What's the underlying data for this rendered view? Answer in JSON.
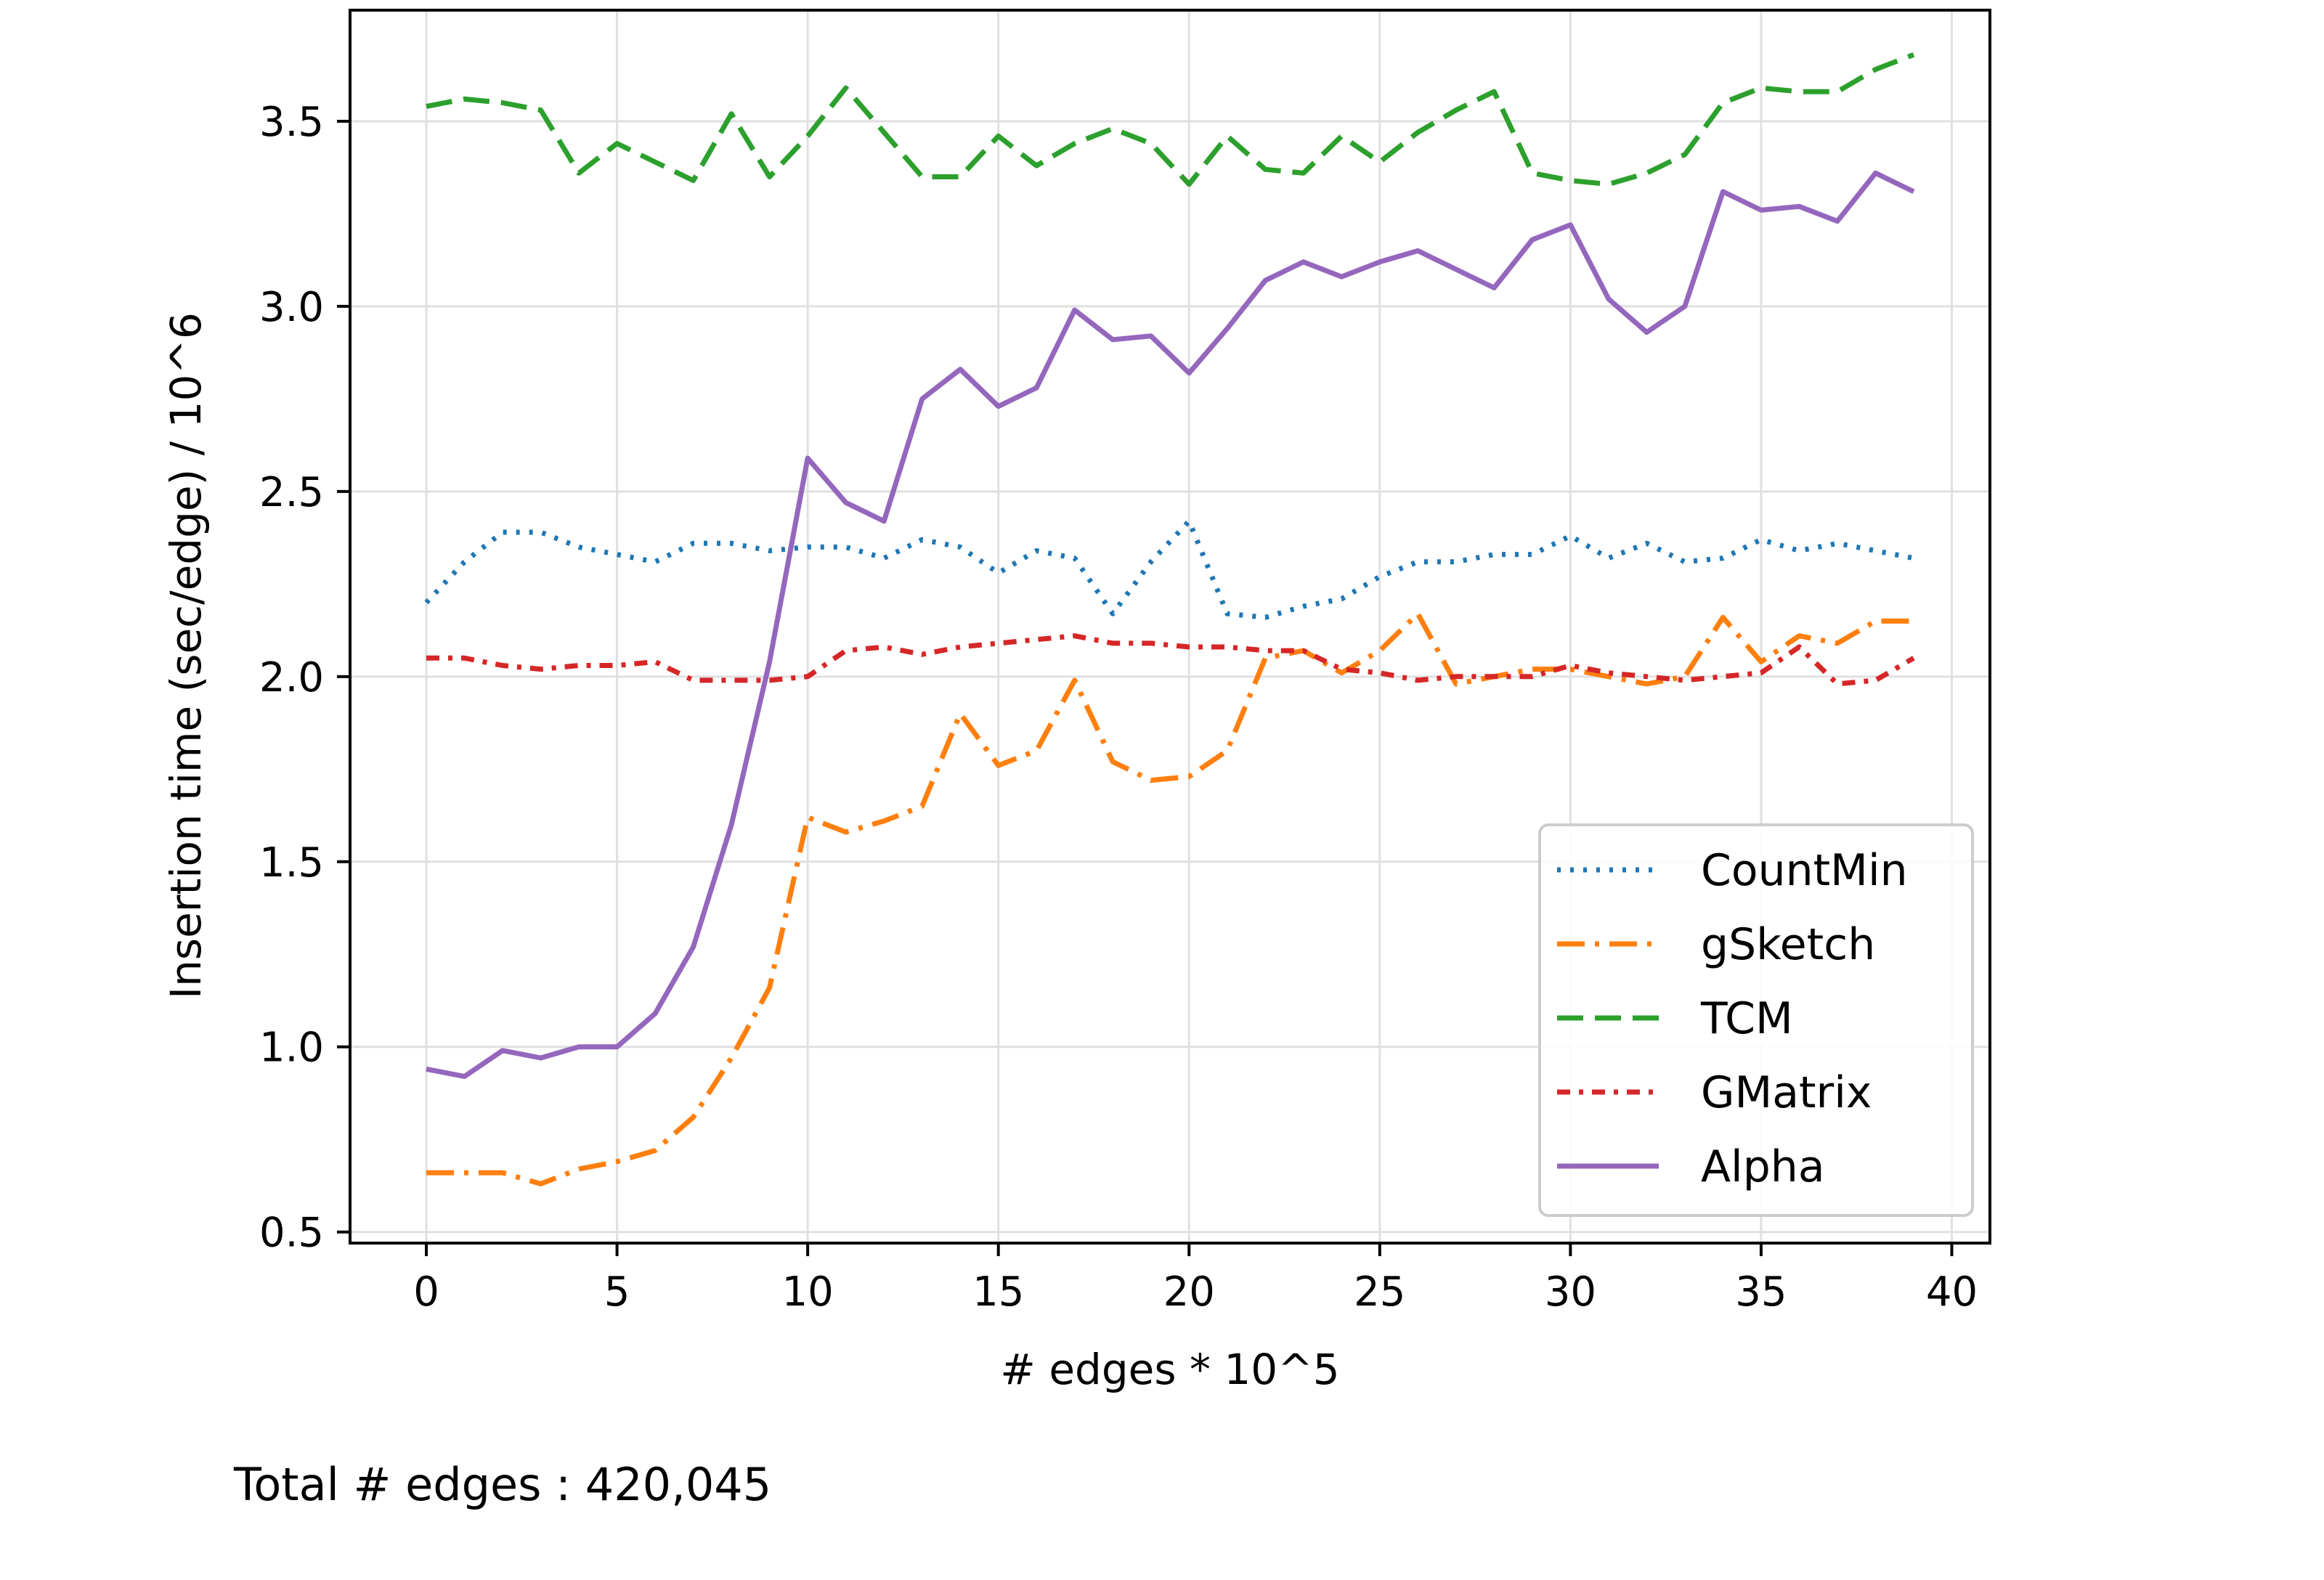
{
  "chart_data": {
    "type": "line",
    "xlabel": "# edges * 10^5",
    "ylabel": "Insertion time (sec/edge) / 10^6",
    "xlim": [
      -2,
      41
    ],
    "ylim": [
      0.47,
      3.8
    ],
    "xticks": [
      0,
      5,
      10,
      15,
      20,
      25,
      30,
      35,
      40
    ],
    "yticks": [
      0.5,
      1.0,
      1.5,
      2.0,
      2.5,
      3.0,
      3.5
    ],
    "ytick_labels": [
      "0.5",
      "1.0",
      "1.5",
      "2.0",
      "2.5",
      "3.0",
      "3.5"
    ],
    "grid": true,
    "legend_position": "lower-right",
    "x": [
      0,
      1,
      2,
      3,
      4,
      5,
      6,
      7,
      8,
      9,
      10,
      11,
      12,
      13,
      14,
      15,
      16,
      17,
      18,
      19,
      20,
      21,
      22,
      23,
      24,
      25,
      26,
      27,
      28,
      29,
      30,
      31,
      32,
      33,
      34,
      35,
      36,
      37,
      38,
      39
    ],
    "series": [
      {
        "name": "CountMin",
        "color": "#1f77b4",
        "dash": "dotted",
        "values": [
          2.2,
          2.31,
          2.39,
          2.39,
          2.35,
          2.33,
          2.31,
          2.36,
          2.36,
          2.34,
          2.35,
          2.35,
          2.32,
          2.37,
          2.35,
          2.28,
          2.34,
          2.32,
          2.17,
          2.31,
          2.42,
          2.17,
          2.16,
          2.19,
          2.21,
          2.27,
          2.31,
          2.31,
          2.33,
          2.33,
          2.38,
          2.32,
          2.36,
          2.31,
          2.32,
          2.37,
          2.34,
          2.36,
          2.34,
          2.32
        ]
      },
      {
        "name": "gSketch",
        "color": "#ff7f0e",
        "dash": "dashdot",
        "values": [
          0.66,
          0.66,
          0.66,
          0.63,
          0.67,
          0.69,
          0.72,
          0.81,
          0.97,
          1.16,
          1.62,
          1.58,
          1.61,
          1.65,
          1.9,
          1.76,
          1.8,
          1.99,
          1.77,
          1.72,
          1.73,
          1.8,
          2.05,
          2.07,
          2.01,
          2.07,
          2.17,
          1.98,
          2.0,
          2.02,
          2.02,
          2.0,
          1.98,
          2.0,
          2.16,
          2.04,
          2.11,
          2.09,
          2.15,
          2.15
        ]
      },
      {
        "name": "TCM",
        "color": "#2ca02c",
        "dash": "dashed",
        "values": [
          3.54,
          3.56,
          3.55,
          3.53,
          3.36,
          3.44,
          3.39,
          3.34,
          3.52,
          3.35,
          3.46,
          3.59,
          3.47,
          3.35,
          3.35,
          3.46,
          3.38,
          3.44,
          3.48,
          3.44,
          3.33,
          3.46,
          3.37,
          3.36,
          3.46,
          3.39,
          3.47,
          3.53,
          3.58,
          3.36,
          3.34,
          3.33,
          3.36,
          3.41,
          3.55,
          3.59,
          3.58,
          3.58,
          3.64,
          3.68
        ]
      },
      {
        "name": "GMatrix",
        "color": "#d62728",
        "dash": "densedashdot",
        "values": [
          2.05,
          2.05,
          2.03,
          2.02,
          2.03,
          2.03,
          2.04,
          1.99,
          1.99,
          1.99,
          2.0,
          2.07,
          2.08,
          2.06,
          2.08,
          2.09,
          2.1,
          2.11,
          2.09,
          2.09,
          2.08,
          2.08,
          2.07,
          2.07,
          2.02,
          2.01,
          1.99,
          2.0,
          2.0,
          2.0,
          2.03,
          2.01,
          2.0,
          1.99,
          2.0,
          2.01,
          2.08,
          1.98,
          1.99,
          2.05
        ]
      },
      {
        "name": "Alpha",
        "color": "#9467bd",
        "dash": "solid",
        "values": [
          0.94,
          0.92,
          0.99,
          0.97,
          1.0,
          1.0,
          1.09,
          1.27,
          1.6,
          2.04,
          2.59,
          2.47,
          2.42,
          2.75,
          2.83,
          2.73,
          2.78,
          2.99,
          2.91,
          2.92,
          2.82,
          2.94,
          3.07,
          3.12,
          3.08,
          3.12,
          3.15,
          3.1,
          3.05,
          3.18,
          3.22,
          3.02,
          2.93,
          3.0,
          3.31,
          3.26,
          3.27,
          3.23,
          3.36,
          3.31
        ]
      }
    ]
  },
  "footnote": "Total # edges : 420,045"
}
